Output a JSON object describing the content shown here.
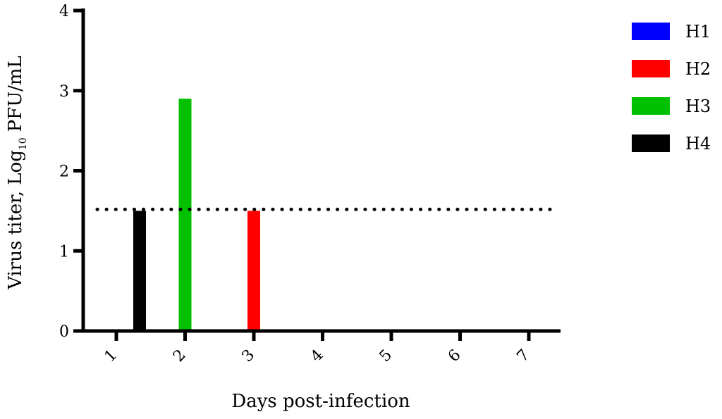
{
  "chart_data": {
    "type": "bar",
    "title": "",
    "xlabel": "Days post-infection",
    "ylabel_main": "Virus titer, Log",
    "ylabel_sub": "10",
    "ylabel_tail": "PFU/mL",
    "categories": [
      "1",
      "2",
      "3",
      "4",
      "5",
      "6",
      "7"
    ],
    "yticks": [
      "0",
      "1",
      "2",
      "3",
      "4"
    ],
    "ylim": [
      0,
      4
    ],
    "series": [
      {
        "name": "H1",
        "color": "#0000ff",
        "values": [
          0,
          0,
          0,
          0,
          0,
          0,
          0
        ]
      },
      {
        "name": "H2",
        "color": "#ff0000",
        "values": [
          0,
          0,
          1.5,
          0,
          0,
          0,
          0
        ]
      },
      {
        "name": "H3",
        "color": "#00c000",
        "values": [
          0,
          2.9,
          0,
          0,
          0,
          0,
          0
        ]
      },
      {
        "name": "H4",
        "color": "#000000",
        "values": [
          1.5,
          0,
          0,
          0,
          0,
          0,
          0
        ]
      }
    ],
    "reference_line": {
      "y": 1.5,
      "style": "dotted"
    },
    "legend_position": "top-right",
    "grid": false
  }
}
